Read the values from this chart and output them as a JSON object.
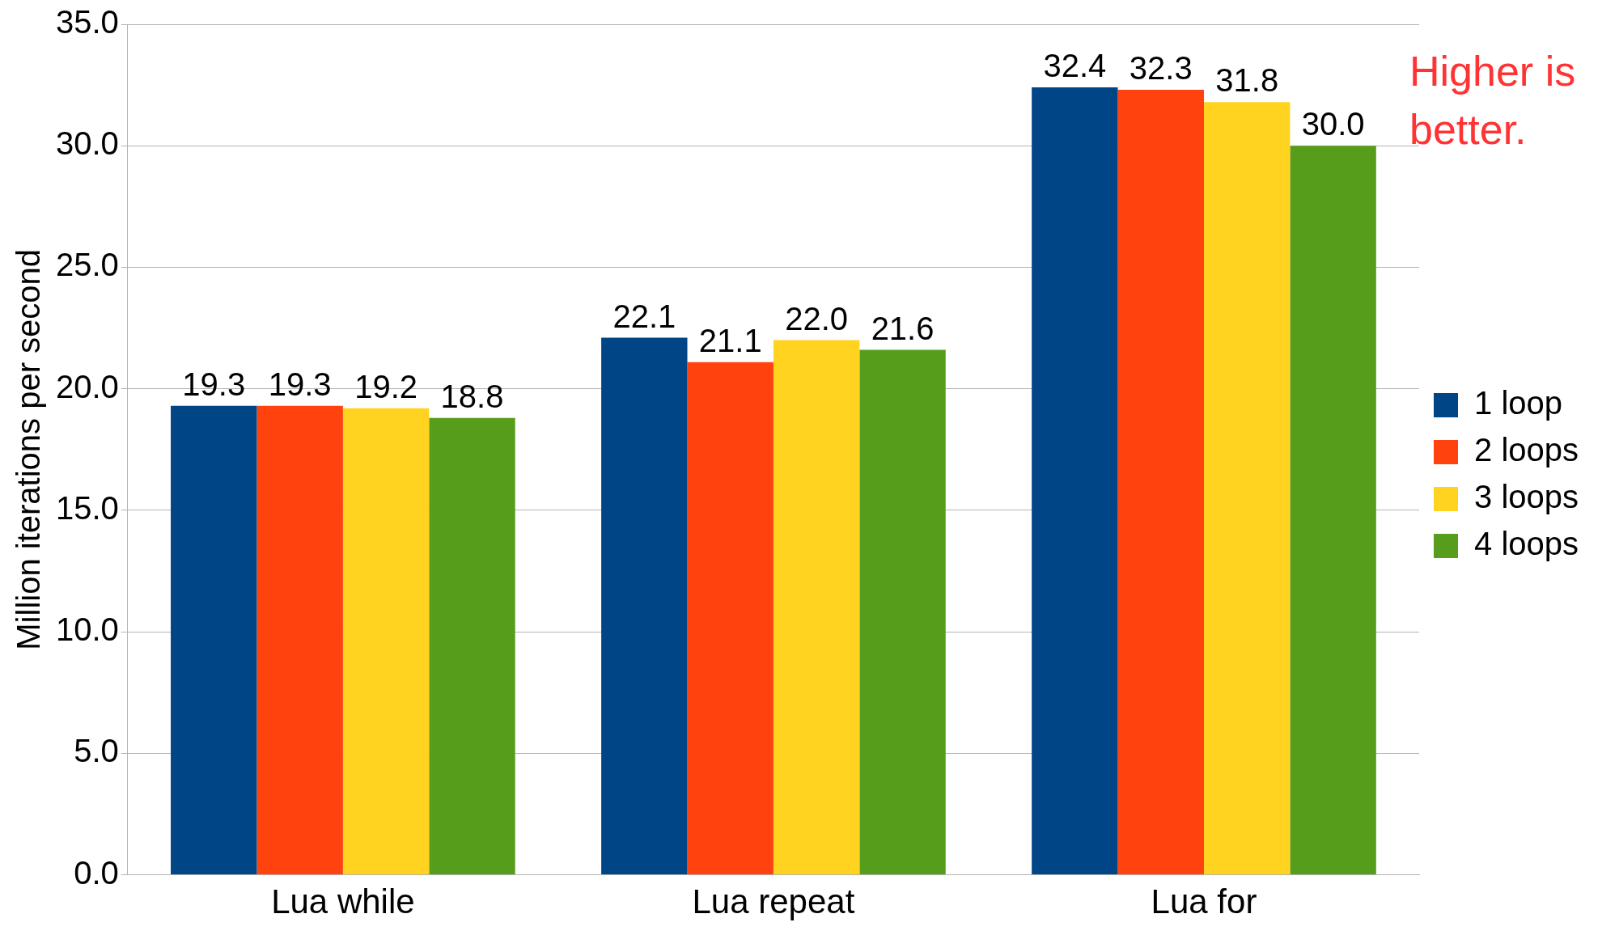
{
  "chart_data": {
    "type": "bar",
    "categories": [
      "Lua while",
      "Lua repeat",
      "Lua for"
    ],
    "ylabel": "Million iterations per second",
    "series": [
      {
        "name": "1 loop",
        "color": "#004586",
        "values": [
          19.3,
          22.1,
          32.4
        ],
        "value_labels": [
          "19.3",
          "22.1",
          "32.4"
        ]
      },
      {
        "name": "2 loops",
        "color": "#ff420e",
        "values": [
          19.3,
          21.1,
          32.3
        ],
        "value_labels": [
          "19.3",
          "21.1",
          "32.3"
        ]
      },
      {
        "name": "3 loops",
        "color": "#ffd320",
        "values": [
          19.2,
          22.0,
          31.8
        ],
        "value_labels": [
          "19.2",
          "22.0",
          "31.8"
        ]
      },
      {
        "name": "4 loops",
        "color": "#579d1c",
        "values": [
          18.8,
          21.6,
          30.0
        ],
        "value_labels": [
          "18.8",
          "21.6",
          "30.0"
        ]
      }
    ],
    "ylim": [
      0,
      35
    ],
    "yticks": [
      {
        "value": 0,
        "label": "0.0"
      },
      {
        "value": 5,
        "label": "5.0"
      },
      {
        "value": 10,
        "label": "10.0"
      },
      {
        "value": 15,
        "label": "15.0"
      },
      {
        "value": 20,
        "label": "20.0"
      },
      {
        "value": 25,
        "label": "25.0"
      },
      {
        "value": 30,
        "label": "30.0"
      },
      {
        "value": 35,
        "label": "35.0"
      }
    ],
    "grid": "y",
    "legend": "right",
    "annotations": [
      "Higher is better."
    ]
  }
}
